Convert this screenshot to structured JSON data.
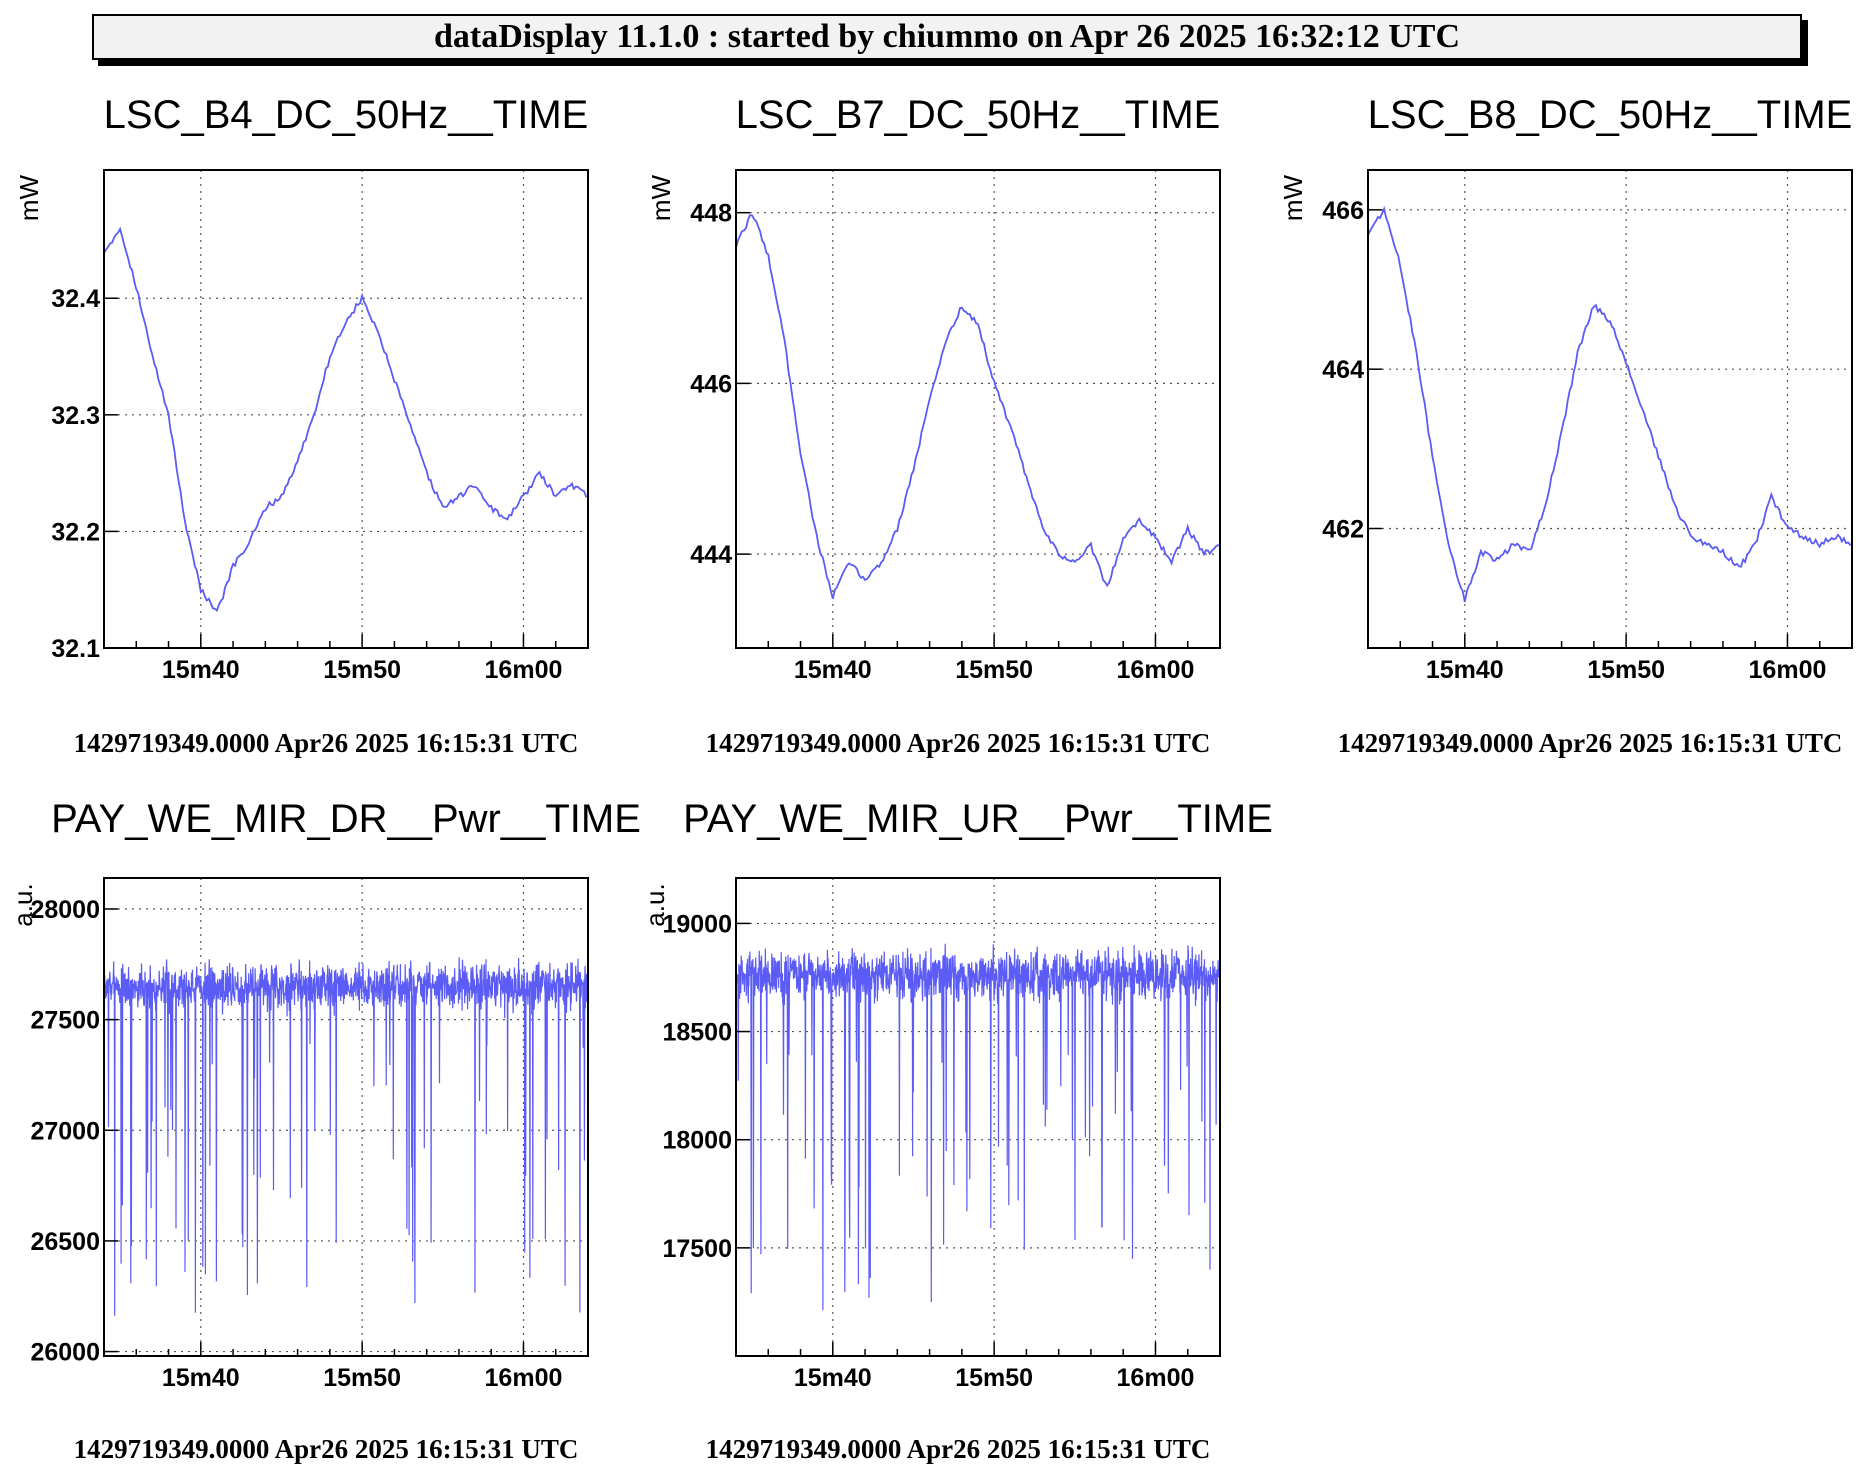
{
  "banner": "dataDisplay 11.1.0 : started by chiummo on Apr 26 2025 16:32:12 UTC",
  "line_color": "#5b5bf5",
  "chart_data": [
    {
      "type": "line",
      "title": "LSC_B4_DC_50Hz__TIME",
      "ylabel": "mW",
      "xlabel": "",
      "footer": "1429719349.0000 Apr26 2025 16:15:31 UTC",
      "xlim": [
        31,
        61
      ],
      "ylim": [
        32.1,
        32.51
      ],
      "grid": true,
      "x_ticks": [
        {
          "value": 37,
          "label": "15m40"
        },
        {
          "value": 47,
          "label": "15m50"
        },
        {
          "value": 57,
          "label": "16m00"
        }
      ],
      "y_ticks": [
        {
          "value": 32.1,
          "label": "32.1"
        },
        {
          "value": 32.2,
          "label": "32.2"
        },
        {
          "value": 32.3,
          "label": "32.3"
        },
        {
          "value": 32.4,
          "label": "32.4"
        }
      ],
      "series": [
        {
          "x": [
            31,
            32,
            33,
            34,
            35,
            36,
            37,
            38,
            39,
            40,
            41,
            42,
            43,
            44,
            45,
            46,
            47,
            48,
            49,
            50,
            51,
            52,
            53,
            54,
            55,
            56,
            57,
            58,
            59,
            60,
            61
          ],
          "y": [
            32.44,
            32.46,
            32.41,
            32.35,
            32.3,
            32.21,
            32.15,
            32.13,
            32.17,
            32.19,
            32.22,
            32.23,
            32.26,
            32.3,
            32.35,
            32.38,
            32.4,
            32.37,
            32.33,
            32.29,
            32.25,
            32.22,
            32.23,
            32.24,
            32.22,
            32.21,
            32.23,
            32.25,
            32.23,
            32.24,
            32.23
          ]
        }
      ]
    },
    {
      "type": "line",
      "title": "LSC_B7_DC_50Hz__TIME",
      "ylabel": "mW",
      "xlabel": "",
      "footer": "1429719349.0000 Apr26 2025 16:15:31 UTC",
      "xlim": [
        31,
        61
      ],
      "ylim": [
        442.9,
        448.5
      ],
      "grid": true,
      "x_ticks": [
        {
          "value": 37,
          "label": "15m40"
        },
        {
          "value": 47,
          "label": "15m50"
        },
        {
          "value": 57,
          "label": "16m00"
        }
      ],
      "y_ticks": [
        {
          "value": 444,
          "label": "444"
        },
        {
          "value": 446,
          "label": "446"
        },
        {
          "value": 448,
          "label": "448"
        }
      ],
      "series": [
        {
          "x": [
            31,
            32,
            33,
            34,
            35,
            36,
            37,
            38,
            39,
            40,
            41,
            42,
            43,
            44,
            45,
            46,
            47,
            48,
            49,
            50,
            51,
            52,
            53,
            54,
            55,
            56,
            57,
            58,
            59,
            60,
            61
          ],
          "y": [
            447.6,
            448.0,
            447.5,
            446.5,
            445.2,
            444.2,
            443.5,
            443.9,
            443.7,
            443.9,
            444.3,
            445.0,
            445.8,
            446.5,
            446.9,
            446.7,
            446.0,
            445.5,
            444.9,
            444.3,
            444.0,
            443.9,
            444.1,
            443.6,
            444.2,
            444.4,
            444.2,
            443.9,
            444.3,
            444.0,
            444.1
          ]
        }
      ]
    },
    {
      "type": "line",
      "title": "LSC_B8_DC_50Hz__TIME",
      "ylabel": "mW",
      "xlabel": "",
      "footer": "1429719349.0000 Apr26 2025 16:15:31 UTC",
      "xlim": [
        31,
        61
      ],
      "ylim": [
        460.5,
        466.5
      ],
      "grid": true,
      "x_ticks": [
        {
          "value": 37,
          "label": "15m40"
        },
        {
          "value": 47,
          "label": "15m50"
        },
        {
          "value": 57,
          "label": "16m00"
        }
      ],
      "y_ticks": [
        {
          "value": 462,
          "label": "462"
        },
        {
          "value": 464,
          "label": "464"
        },
        {
          "value": 466,
          "label": "466"
        }
      ],
      "series": [
        {
          "x": [
            31,
            32,
            33,
            34,
            35,
            36,
            37,
            38,
            39,
            40,
            41,
            42,
            43,
            44,
            45,
            46,
            47,
            48,
            49,
            50,
            51,
            52,
            53,
            54,
            55,
            56,
            57,
            58,
            59,
            60,
            61
          ],
          "y": [
            465.7,
            466.0,
            465.3,
            464.2,
            462.9,
            461.8,
            461.1,
            461.7,
            461.6,
            461.8,
            461.7,
            462.3,
            463.2,
            464.2,
            464.8,
            464.6,
            464.1,
            463.5,
            462.9,
            462.3,
            461.9,
            461.8,
            461.7,
            461.5,
            461.8,
            462.4,
            462.0,
            461.9,
            461.8,
            461.9,
            461.8
          ]
        }
      ]
    },
    {
      "type": "line",
      "title": "PAY_WE_MIR_DR__Pwr__TIME",
      "ylabel": "a.u.",
      "xlabel": "",
      "footer": "1429719349.0000 Apr26 2025 16:15:31 UTC",
      "xlim": [
        31,
        61
      ],
      "ylim": [
        25980,
        28140
      ],
      "grid": true,
      "x_ticks": [
        {
          "value": 37,
          "label": "15m40"
        },
        {
          "value": 47,
          "label": "15m50"
        },
        {
          "value": 57,
          "label": "16m00"
        }
      ],
      "y_ticks": [
        {
          "value": 26000,
          "label": "26000"
        },
        {
          "value": 26500,
          "label": "26500"
        },
        {
          "value": 27000,
          "label": "27000"
        },
        {
          "value": 27500,
          "label": "27500"
        },
        {
          "value": 28000,
          "label": "28000"
        }
      ],
      "noise": {
        "baseline": 27650,
        "amplitude": 110,
        "spike_min": 26150,
        "spike_max": 27400,
        "samples": 1500,
        "spike_fraction": 0.045,
        "seed": 7
      }
    },
    {
      "type": "line",
      "title": "PAY_WE_MIR_UR__Pwr__TIME",
      "ylabel": "a.u.",
      "xlabel": "",
      "footer": "1429719349.0000 Apr26 2025 16:15:31 UTC",
      "xlim": [
        31,
        61
      ],
      "ylim": [
        17000,
        19210
      ],
      "grid": true,
      "x_ticks": [
        {
          "value": 37,
          "label": "15m40"
        },
        {
          "value": 47,
          "label": "15m50"
        },
        {
          "value": 57,
          "label": "16m00"
        }
      ],
      "y_ticks": [
        {
          "value": 17500,
          "label": "17500"
        },
        {
          "value": 18000,
          "label": "18000"
        },
        {
          "value": 18500,
          "label": "18500"
        },
        {
          "value": 19000,
          "label": "19000"
        }
      ],
      "noise": {
        "baseline": 18760,
        "amplitude": 120,
        "spike_min": 17200,
        "spike_max": 18400,
        "samples": 1500,
        "spike_fraction": 0.045,
        "seed": 13
      }
    }
  ]
}
